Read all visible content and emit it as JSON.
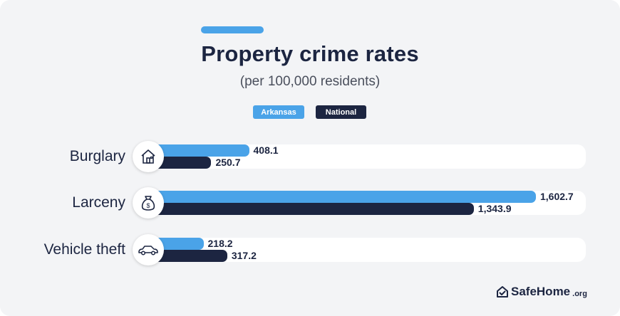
{
  "colors": {
    "arkansas": "#4aa3e8",
    "national": "#1c2541",
    "text_dark": "#1c2541",
    "text_muted": "#4a4f5c"
  },
  "chart_data": {
    "type": "bar",
    "orientation": "horizontal",
    "title": "Property crime rates",
    "subtitle": "(per 100,000 residents)",
    "legend": [
      "Arkansas",
      "National"
    ],
    "categories": [
      "Burglary",
      "Larceny",
      "Vehicle theft"
    ],
    "category_icons": [
      "house-icon",
      "money-bag-icon",
      "car-icon"
    ],
    "series": [
      {
        "name": "Arkansas",
        "values": [
          408.1,
          1602.7,
          218.2
        ],
        "labels": [
          "408.1",
          "1,602.7",
          "218.2"
        ]
      },
      {
        "name": "National",
        "values": [
          250.7,
          1343.9,
          317.2
        ],
        "labels": [
          "250.7",
          "1,343.9",
          "317.2"
        ]
      }
    ],
    "xlim": [
      0,
      1800
    ],
    "grid": false
  },
  "brand": {
    "name": "SafeHome",
    "suffix": ".org",
    "icon": "house-check-icon"
  }
}
